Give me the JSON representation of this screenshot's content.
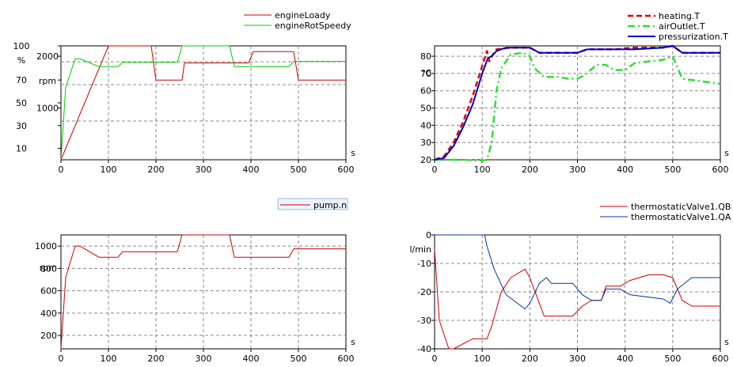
{
  "chart_data": [
    {
      "type": "line",
      "x_unit": "s",
      "xlim": [
        0,
        600
      ],
      "x_ticks": [
        0,
        100,
        200,
        300,
        400,
        500,
        600
      ],
      "axes": [
        {
          "id": "left_pct",
          "unit": "%",
          "ylim": [
            0,
            100
          ],
          "ticks": [
            10,
            30,
            50,
            70,
            100
          ],
          "color": "#cc0000"
        },
        {
          "id": "left_rpm",
          "unit": "rpm",
          "ylim": [
            0,
            2200
          ],
          "ticks": [
            1000,
            2000
          ],
          "color": "#00aa00"
        }
      ],
      "grid_y": [
        0.34,
        0.66,
        0.86
      ],
      "grid": true,
      "legend_position": "top-right",
      "series": [
        {
          "name": "engineLoady",
          "color": "#cc0000",
          "axis": "left_pct",
          "width": 1,
          "dash": "",
          "points": [
            [
              0,
              0
            ],
            [
              100,
              100
            ],
            [
              190,
              100
            ],
            [
              200,
              70
            ],
            [
              255,
              70
            ],
            [
              260,
              85
            ],
            [
              320,
              85
            ],
            [
              330,
              85
            ],
            [
              395,
              85
            ],
            [
              405,
              95
            ],
            [
              490,
              95
            ],
            [
              500,
              70
            ],
            [
              600,
              70
            ]
          ]
        },
        {
          "name": "engineRotSpeedy",
          "color": "#00cc00",
          "axis": "left_rpm",
          "width": 1,
          "dash": "",
          "points": [
            [
              0,
              0
            ],
            [
              10,
              1400
            ],
            [
              30,
              1950
            ],
            [
              40,
              1950
            ],
            [
              80,
              1800
            ],
            [
              120,
              1800
            ],
            [
              130,
              1880
            ],
            [
              245,
              1880
            ],
            [
              255,
              2200
            ],
            [
              355,
              2200
            ],
            [
              365,
              1800
            ],
            [
              480,
              1800
            ],
            [
              490,
              1900
            ],
            [
              600,
              1900
            ]
          ]
        }
      ]
    },
    {
      "type": "line",
      "x_unit": "s",
      "xlim": [
        0,
        600
      ],
      "x_ticks": [
        0,
        100,
        200,
        300,
        400,
        500,
        600
      ],
      "axes": [
        {
          "id": "temp",
          "unit": "°C",
          "ylim": [
            20,
            86
          ],
          "ticks": [
            20,
            30,
            40,
            50,
            60,
            70,
            80
          ],
          "color": "#000000"
        }
      ],
      "grid": true,
      "legend_position": "top-right",
      "series": [
        {
          "name": "heating.T",
          "color": "#dd0000",
          "axis": "temp",
          "width": 2.5,
          "dash": "7 4",
          "points": [
            [
              0,
              20
            ],
            [
              20,
              22
            ],
            [
              40,
              30
            ],
            [
              60,
              42
            ],
            [
              80,
              57
            ],
            [
              95,
              70
            ],
            [
              110,
              83
            ],
            [
              115,
              77
            ],
            [
              120,
              80
            ],
            [
              130,
              84
            ],
            [
              160,
              85
            ],
            [
              200,
              85
            ],
            [
              220,
              82
            ],
            [
              280,
              82
            ],
            [
              300,
              82
            ],
            [
              320,
              84
            ],
            [
              380,
              84
            ],
            [
              420,
              85
            ],
            [
              480,
              85
            ],
            [
              500,
              86
            ],
            [
              520,
              82
            ],
            [
              600,
              82
            ]
          ]
        },
        {
          "name": "airOutlet.T",
          "color": "#33dd33",
          "axis": "temp",
          "width": 2.5,
          "dash": "9 4 2 4",
          "points": [
            [
              0,
              20
            ],
            [
              60,
              20
            ],
            [
              100,
              19.5
            ],
            [
              110,
              20
            ],
            [
              120,
              30
            ],
            [
              130,
              60
            ],
            [
              140,
              73
            ],
            [
              160,
              81
            ],
            [
              185,
              82
            ],
            [
              200,
              80
            ],
            [
              210,
              73
            ],
            [
              230,
              68
            ],
            [
              260,
              68
            ],
            [
              280,
              67
            ],
            [
              300,
              67
            ],
            [
              315,
              69
            ],
            [
              340,
              75
            ],
            [
              360,
              75
            ],
            [
              370,
              73
            ],
            [
              380,
              72
            ],
            [
              400,
              72
            ],
            [
              420,
              76
            ],
            [
              480,
              78
            ],
            [
              500,
              80
            ],
            [
              520,
              67
            ],
            [
              600,
              64
            ]
          ]
        },
        {
          "name": "pressurization.T",
          "color": "#0000cc",
          "axis": "temp",
          "width": 2,
          "dash": "",
          "points": [
            [
              0,
              20
            ],
            [
              20,
              21
            ],
            [
              40,
              28
            ],
            [
              60,
              39
            ],
            [
              80,
              52
            ],
            [
              100,
              70
            ],
            [
              112,
              79
            ],
            [
              120,
              80
            ],
            [
              130,
              83
            ],
            [
              150,
              85
            ],
            [
              200,
              85
            ],
            [
              220,
              82
            ],
            [
              280,
              82
            ],
            [
              300,
              82
            ],
            [
              320,
              84
            ],
            [
              380,
              84
            ],
            [
              420,
              84
            ],
            [
              480,
              85
            ],
            [
              500,
              86
            ],
            [
              520,
              82
            ],
            [
              600,
              82
            ]
          ]
        }
      ]
    },
    {
      "type": "line",
      "x_unit": "s",
      "xlim": [
        0,
        600
      ],
      "x_ticks": [
        0,
        100,
        200,
        300,
        400,
        500,
        600
      ],
      "axes": [
        {
          "id": "speed",
          "unit": "rpm",
          "ylim": [
            80,
            1100
          ],
          "ticks": [
            200,
            400,
            600,
            800,
            1000
          ],
          "color": "#000000"
        }
      ],
      "grid": true,
      "legend_position": "top-right",
      "series": [
        {
          "name": "pump.n",
          "color": "#cc0000",
          "axis": "speed",
          "width": 1,
          "dash": "",
          "points": [
            [
              0,
              80
            ],
            [
              10,
              720
            ],
            [
              30,
              1000
            ],
            [
              40,
              1000
            ],
            [
              80,
              900
            ],
            [
              120,
              900
            ],
            [
              130,
              950
            ],
            [
              245,
              950
            ],
            [
              255,
              1100
            ],
            [
              355,
              1100
            ],
            [
              365,
              900
            ],
            [
              480,
              900
            ],
            [
              490,
              975
            ],
            [
              600,
              975
            ]
          ]
        }
      ]
    },
    {
      "type": "line",
      "x_unit": "s",
      "xlim": [
        0,
        600
      ],
      "x_ticks": [
        0,
        100,
        200,
        300,
        400,
        500,
        600
      ],
      "axes": [
        {
          "id": "flow",
          "unit": "l/min",
          "ylim": [
            -40,
            0
          ],
          "ticks": [
            -40,
            -30,
            -20,
            -10,
            0
          ],
          "color": "#000000"
        }
      ],
      "grid": true,
      "legend_position": "top-right",
      "series": [
        {
          "name": "thermostaticValve1.QB",
          "color": "#cc0000",
          "axis": "flow",
          "width": 1,
          "dash": "",
          "points": [
            [
              0,
              -5
            ],
            [
              10,
              -30
            ],
            [
              30,
              -40
            ],
            [
              40,
              -40
            ],
            [
              80,
              -36.5
            ],
            [
              110,
              -36.5
            ],
            [
              120,
              -32
            ],
            [
              140,
              -20
            ],
            [
              160,
              -15
            ],
            [
              190,
              -12
            ],
            [
              200,
              -15
            ],
            [
              230,
              -28.5
            ],
            [
              290,
              -28.5
            ],
            [
              310,
              -25
            ],
            [
              330,
              -23
            ],
            [
              350,
              -23
            ],
            [
              360,
              -18
            ],
            [
              390,
              -18
            ],
            [
              410,
              -16
            ],
            [
              450,
              -14
            ],
            [
              480,
              -14
            ],
            [
              500,
              -15
            ],
            [
              520,
              -23
            ],
            [
              540,
              -25
            ],
            [
              600,
              -25
            ]
          ]
        },
        {
          "name": "thermostaticValve1.QA",
          "color": "#0033aa",
          "axis": "flow",
          "width": 1,
          "dash": "",
          "points": [
            [
              0,
              0
            ],
            [
              105,
              0
            ],
            [
              110,
              -4
            ],
            [
              125,
              -12
            ],
            [
              150,
              -21
            ],
            [
              190,
              -26
            ],
            [
              200,
              -24
            ],
            [
              220,
              -17
            ],
            [
              235,
              -15
            ],
            [
              245,
              -17
            ],
            [
              290,
              -17
            ],
            [
              310,
              -21
            ],
            [
              330,
              -23
            ],
            [
              350,
              -23
            ],
            [
              360,
              -19
            ],
            [
              390,
              -19
            ],
            [
              410,
              -21
            ],
            [
              480,
              -22.5
            ],
            [
              495,
              -24
            ],
            [
              510,
              -19
            ],
            [
              540,
              -15
            ],
            [
              600,
              -15
            ]
          ]
        }
      ]
    }
  ]
}
